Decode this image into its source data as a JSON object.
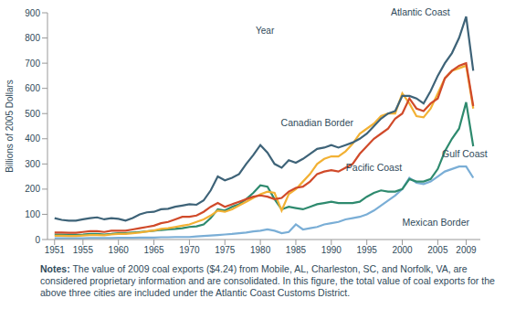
{
  "chart_data": {
    "type": "line",
    "x_label": "Year",
    "y_label": "Billions of 2005 Dollars",
    "notes_label": "Notes:",
    "notes": "The value of 2009 coal exports ($4.24) from Mobile, AL, Charleston, SC, and Norfolk, VA, are considered proprietary information and are consolidated. In this figure, the total value of coal exports for the above three cities are included under the Atlantic Coast Customs District.",
    "grid": false,
    "x": [
      1951,
      1952,
      1953,
      1954,
      1955,
      1956,
      1957,
      1958,
      1959,
      1960,
      1961,
      1962,
      1963,
      1964,
      1965,
      1966,
      1967,
      1968,
      1969,
      1970,
      1971,
      1972,
      1973,
      1974,
      1975,
      1976,
      1977,
      1978,
      1979,
      1980,
      1981,
      1982,
      1983,
      1984,
      1985,
      1986,
      1987,
      1988,
      1989,
      1990,
      1991,
      1992,
      1993,
      1994,
      1995,
      1996,
      1997,
      1998,
      1999,
      2000,
      2001,
      2002,
      2003,
      2004,
      2005,
      2006,
      2007,
      2008,
      2009,
      2010
    ],
    "xlim": [
      1950,
      2011
    ],
    "xticks": [
      1951,
      1955,
      1960,
      1965,
      1970,
      1975,
      1980,
      1985,
      1990,
      1995,
      2000,
      2005,
      2009
    ],
    "ylim": [
      0,
      900
    ],
    "yticks": [
      0,
      100,
      200,
      300,
      400,
      500,
      600,
      700,
      800,
      900
    ],
    "series": [
      {
        "name": "Mexican Border",
        "color": "#7aaed6",
        "values": [
          5,
          5,
          5,
          5,
          5,
          6,
          6,
          6,
          6,
          7,
          7,
          7,
          8,
          8,
          8,
          9,
          9,
          10,
          10,
          10,
          12,
          14,
          16,
          18,
          20,
          22,
          25,
          28,
          32,
          35,
          40,
          35,
          25,
          30,
          60,
          40,
          45,
          50,
          60,
          65,
          70,
          80,
          85,
          90,
          100,
          115,
          135,
          155,
          175,
          200,
          245,
          225,
          220,
          230,
          250,
          270,
          280,
          290,
          290,
          245
        ]
      },
      {
        "name": "Gulf Coast",
        "color": "#2e8a6e",
        "values": [
          20,
          20,
          19,
          19,
          20,
          22,
          22,
          20,
          22,
          25,
          25,
          28,
          30,
          32,
          35,
          38,
          40,
          42,
          45,
          50,
          52,
          60,
          85,
          120,
          115,
          130,
          140,
          160,
          185,
          215,
          210,
          160,
          120,
          130,
          125,
          120,
          130,
          140,
          145,
          150,
          145,
          145,
          145,
          150,
          170,
          185,
          195,
          190,
          190,
          200,
          240,
          230,
          230,
          240,
          280,
          350,
          400,
          440,
          545,
          370
        ]
      },
      {
        "name": "Pacific Coast",
        "color": "#f2b134",
        "values": [
          15,
          15,
          14,
          14,
          16,
          18,
          18,
          17,
          20,
          22,
          22,
          25,
          28,
          32,
          36,
          42,
          45,
          50,
          55,
          60,
          70,
          80,
          95,
          115,
          110,
          120,
          135,
          150,
          165,
          180,
          190,
          185,
          115,
          180,
          200,
          230,
          260,
          300,
          320,
          330,
          330,
          350,
          380,
          420,
          440,
          460,
          490,
          500,
          500,
          580,
          540,
          490,
          485,
          520,
          580,
          640,
          670,
          680,
          690,
          520
        ]
      },
      {
        "name": "Canadian Border",
        "color": "#d04a2a",
        "values": [
          28,
          28,
          27,
          27,
          30,
          33,
          33,
          30,
          35,
          35,
          35,
          40,
          45,
          50,
          55,
          65,
          70,
          80,
          90,
          90,
          95,
          110,
          130,
          145,
          130,
          140,
          150,
          160,
          170,
          175,
          170,
          160,
          165,
          190,
          205,
          210,
          230,
          260,
          270,
          275,
          270,
          285,
          300,
          340,
          370,
          400,
          420,
          440,
          480,
          500,
          560,
          520,
          510,
          540,
          560,
          640,
          670,
          690,
          700,
          530
        ]
      },
      {
        "name": "Atlantic Coast",
        "color": "#3e6378",
        "values": [
          85,
          78,
          75,
          75,
          80,
          85,
          88,
          80,
          85,
          82,
          75,
          85,
          100,
          108,
          110,
          120,
          122,
          130,
          135,
          140,
          138,
          155,
          195,
          250,
          235,
          245,
          260,
          300,
          335,
          375,
          345,
          300,
          285,
          315,
          305,
          320,
          340,
          360,
          365,
          375,
          365,
          375,
          385,
          400,
          420,
          450,
          480,
          500,
          510,
          570,
          570,
          560,
          540,
          590,
          650,
          700,
          740,
          800,
          885,
          670
        ]
      }
    ]
  }
}
